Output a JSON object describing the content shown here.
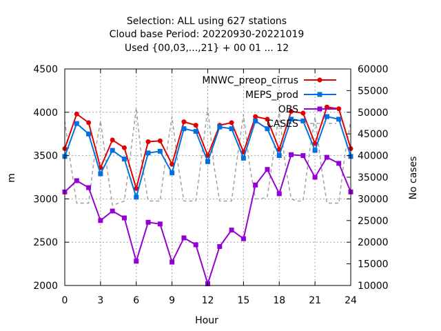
{
  "chart_data": {
    "type": "line",
    "title_lines": [
      "Selection: ALL using   627 stations",
      "Cloud base   Period: 20220930-20221019",
      "Used {00,03,...,21} + 00 01 ... 12"
    ],
    "xlabel": "Hour",
    "ylabel": "m",
    "y2label": "No cases",
    "xlim": [
      0,
      24
    ],
    "ylim": [
      2000,
      4500
    ],
    "y2lim": [
      10000,
      60000
    ],
    "xticks": [
      0,
      3,
      6,
      9,
      12,
      15,
      18,
      21,
      24
    ],
    "yticks": [
      2000,
      2500,
      3000,
      3500,
      4000,
      4500
    ],
    "y2ticks": [
      10000,
      15000,
      20000,
      25000,
      30000,
      35000,
      40000,
      45000,
      50000,
      55000,
      60000
    ],
    "grid": true,
    "legend_position": "top-right",
    "x": [
      0,
      1,
      2,
      3,
      4,
      5,
      6,
      7,
      8,
      9,
      10,
      11,
      12,
      13,
      14,
      15,
      16,
      17,
      18,
      19,
      20,
      21,
      22,
      23,
      24
    ],
    "series": [
      {
        "name": "MNWC_preop_cirrus",
        "color": "#e00000",
        "marker": "filled-circle",
        "values": [
          3580,
          3980,
          3880,
          3360,
          3680,
          3590,
          3120,
          3660,
          3670,
          3400,
          3890,
          3850,
          3500,
          3850,
          3880,
          3540,
          3950,
          3920,
          3570,
          4010,
          3990,
          3640,
          4060,
          4040,
          3580
        ]
      },
      {
        "name": "MEPS_prod",
        "color": "#0070e0",
        "marker": "filled-square",
        "values": [
          3490,
          3870,
          3750,
          3290,
          3560,
          3460,
          3020,
          3530,
          3550,
          3300,
          3810,
          3780,
          3430,
          3830,
          3810,
          3470,
          3900,
          3810,
          3500,
          3920,
          3900,
          3560,
          3950,
          3920,
          3490
        ]
      },
      {
        "name": "OBS",
        "color": "#9400d3",
        "marker": "filled-square",
        "values": [
          3080,
          3210,
          3130,
          2750,
          2860,
          2780,
          2280,
          2730,
          2710,
          2270,
          2550,
          2470,
          2020,
          2450,
          2640,
          2540,
          3160,
          3340,
          3060,
          3510,
          3500,
          3250,
          3480,
          3410,
          3080
        ]
      },
      {
        "name": "CASES",
        "color": "#a0a0a0",
        "dashed": true,
        "axis": "y2",
        "x": [
          0,
          0.5,
          1,
          1.5,
          2,
          2.5,
          3,
          3.5,
          4,
          4.5,
          5,
          5.5,
          6,
          6.5,
          7,
          7.5,
          8,
          8.5,
          9,
          9.5,
          10,
          10.5,
          11,
          11.5,
          12,
          12.5,
          13,
          13.5,
          14,
          14.5,
          15,
          15.5,
          16,
          16.5,
          17,
          17.5,
          18,
          18.5,
          19,
          19.5,
          20,
          20.5,
          21,
          21.5,
          22,
          22.5,
          23,
          23.5,
          24
        ],
        "values": [
          48000,
          38000,
          29000,
          29000,
          29000,
          40000,
          48000,
          38000,
          28500,
          29000,
          29500,
          40000,
          51000,
          38000,
          29500,
          29500,
          29500,
          40000,
          49000,
          38000,
          29500,
          29500,
          29500,
          40000,
          51000,
          38000,
          29500,
          29500,
          29500,
          40000,
          49500,
          38000,
          30000,
          30000,
          30500,
          40000,
          50000,
          38000,
          30000,
          29500,
          29500,
          40000,
          49000,
          38000,
          29000,
          29000,
          29000,
          40000,
          48000
        ]
      }
    ]
  }
}
